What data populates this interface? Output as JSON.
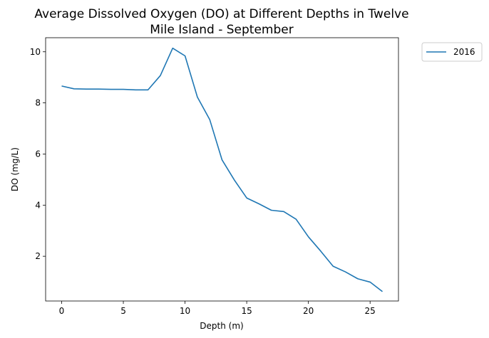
{
  "chart_data": {
    "type": "line",
    "title_line1": "Average Dissolved Oxygen (DO) at Different Depths in Twelve",
    "title_line2": "Mile Island - September",
    "xlabel": "Depth (m)",
    "ylabel": "DO (mg/L)",
    "xlim": [
      -1.3,
      27.3
    ],
    "ylim": [
      0.25,
      10.55
    ],
    "xticks": [
      0,
      5,
      10,
      15,
      20,
      25
    ],
    "yticks": [
      2,
      4,
      6,
      8,
      10
    ],
    "grid": false,
    "legend_position": "outside-top-right",
    "series": [
      {
        "name": "2016",
        "color": "#1f77b4",
        "x": [
          0,
          1,
          2,
          3,
          4,
          5,
          6,
          7,
          8,
          9,
          10,
          11,
          12,
          13,
          14,
          15,
          16,
          17,
          18,
          19,
          20,
          21,
          22,
          23,
          24,
          25,
          26
        ],
        "y": [
          8.66,
          8.55,
          8.54,
          8.54,
          8.53,
          8.53,
          8.51,
          8.51,
          9.07,
          10.14,
          9.84,
          8.23,
          7.35,
          5.77,
          4.98,
          4.28,
          4.05,
          3.8,
          3.75,
          3.45,
          2.76,
          2.2,
          1.61,
          1.39,
          1.12,
          0.99,
          0.62
        ]
      }
    ]
  }
}
